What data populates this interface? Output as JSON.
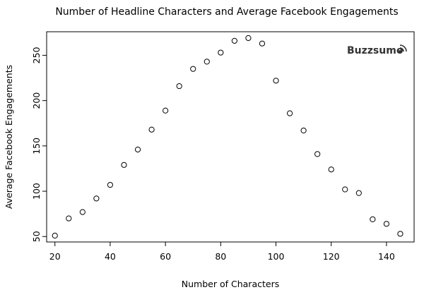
{
  "chart_data": {
    "type": "scatter",
    "title": "Number of Headline Characters and Average Facebook Engagements",
    "xlabel": "Number of Characters",
    "ylabel": "Average Facebook Engagements",
    "xlim": [
      17,
      150
    ],
    "ylim": [
      44,
      276
    ],
    "xticks": [
      20,
      40,
      60,
      80,
      100,
      120,
      140
    ],
    "yticks": [
      50,
      100,
      150,
      200,
      250
    ],
    "grid": false,
    "legend": "none",
    "marker": "open-circle",
    "series": [
      {
        "x": [
          20,
          25,
          30,
          35,
          40,
          45,
          50,
          55,
          60,
          65,
          70,
          75,
          80,
          85,
          90,
          95,
          100,
          105,
          110,
          115,
          120,
          125,
          130,
          135,
          140,
          145
        ],
        "y": [
          51,
          70,
          77,
          92,
          107,
          129,
          146,
          168,
          189,
          216,
          235,
          243,
          253,
          266,
          269,
          263,
          222,
          186,
          167,
          141,
          124,
          102,
          98,
          69,
          64,
          53
        ]
      }
    ]
  },
  "watermark": {
    "text": "Buzzsumo",
    "icon": "signal-icon",
    "color": "#333333"
  }
}
